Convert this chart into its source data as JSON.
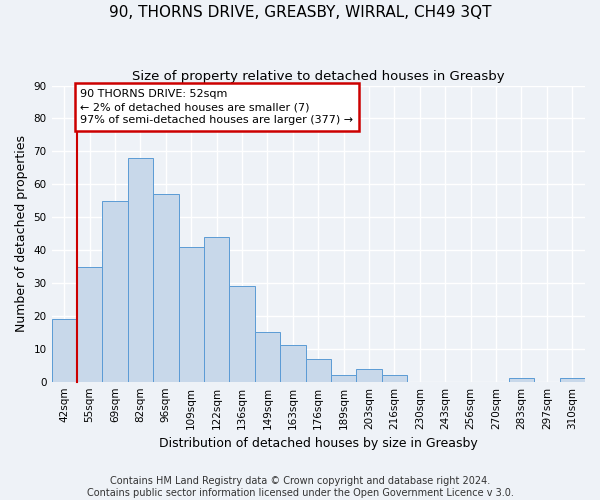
{
  "title": "90, THORNS DRIVE, GREASBY, WIRRAL, CH49 3QT",
  "subtitle": "Size of property relative to detached houses in Greasby",
  "xlabel": "Distribution of detached houses by size in Greasby",
  "ylabel": "Number of detached properties",
  "bar_color": "#c8d8ea",
  "bar_edge_color": "#5b9bd5",
  "categories": [
    "42sqm",
    "55sqm",
    "69sqm",
    "82sqm",
    "96sqm",
    "109sqm",
    "122sqm",
    "136sqm",
    "149sqm",
    "163sqm",
    "176sqm",
    "189sqm",
    "203sqm",
    "216sqm",
    "230sqm",
    "243sqm",
    "256sqm",
    "270sqm",
    "283sqm",
    "297sqm",
    "310sqm"
  ],
  "values": [
    19,
    35,
    55,
    68,
    57,
    41,
    44,
    29,
    15,
    11,
    7,
    2,
    4,
    2,
    0,
    0,
    0,
    0,
    1,
    0,
    1
  ],
  "ylim": [
    0,
    90
  ],
  "yticks": [
    0,
    10,
    20,
    30,
    40,
    50,
    60,
    70,
    80,
    90
  ],
  "annotation_title": "90 THORNS DRIVE: 52sqm",
  "annotation_line1": "← 2% of detached houses are smaller (7)",
  "annotation_line2": "97% of semi-detached houses are larger (377) →",
  "annotation_box_color": "#ffffff",
  "annotation_box_edge": "#cc0000",
  "footer1": "Contains HM Land Registry data © Crown copyright and database right 2024.",
  "footer2": "Contains public sector information licensed under the Open Government Licence v 3.0.",
  "background_color": "#eef2f7",
  "grid_color": "#ffffff",
  "title_fontsize": 11,
  "subtitle_fontsize": 9.5,
  "axis_label_fontsize": 9,
  "tick_fontsize": 7.5,
  "footer_fontsize": 7
}
